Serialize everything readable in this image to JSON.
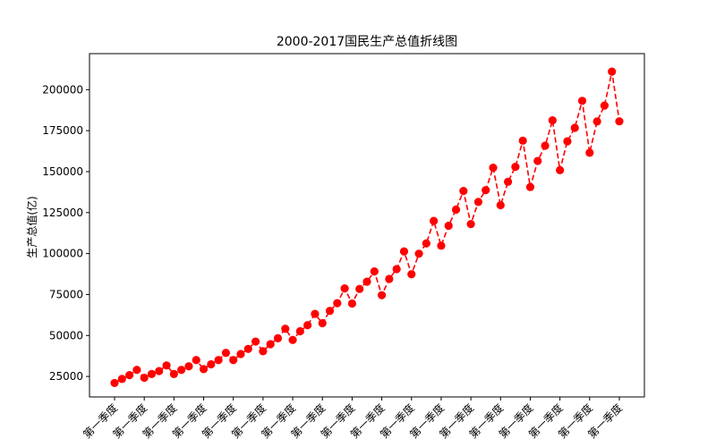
{
  "chart_data": {
    "type": "line",
    "title": "2000-2017国民生产总值折线图",
    "xlabel": "",
    "ylabel": "生产总值(亿)",
    "ylim": [
      12500,
      222000
    ],
    "yticks": [
      25000,
      50000,
      75000,
      100000,
      125000,
      150000,
      175000,
      200000
    ],
    "grid": false,
    "legend": "none",
    "line_color": "#ff0000",
    "marker_color": "#ff0000",
    "line_style": "dashed",
    "marker": "circle",
    "x_tick_labels": [
      "第一季度",
      "第一季度",
      "第一季度",
      "第一季度",
      "第一季度",
      "第一季度",
      "第一季度",
      "第一季度",
      "第一季度",
      "第一季度",
      "第一季度",
      "第一季度",
      "第一季度",
      "第一季度",
      "第一季度",
      "第一季度",
      "第一季度",
      "第一季度"
    ],
    "x_tick_every": 4,
    "values": [
      21000,
      23500,
      25800,
      29000,
      24200,
      26500,
      28300,
      31700,
      26500,
      29000,
      31200,
      35000,
      29500,
      32400,
      35000,
      39400,
      35000,
      38700,
      41800,
      46300,
      40400,
      44700,
      48300,
      54100,
      47300,
      52600,
      56300,
      63200,
      57500,
      65000,
      69700,
      78700,
      69500,
      78400,
      82800,
      89100,
      74600,
      84500,
      90500,
      101300,
      87400,
      99900,
      106200,
      119900,
      104800,
      117000,
      126800,
      138200,
      118000,
      131500,
      138700,
      152400,
      129500,
      143800,
      152900,
      168900,
      140600,
      156500,
      165800,
      181300,
      150900,
      168500,
      176700,
      193200,
      161500,
      180600,
      190300,
      211000,
      180700
    ]
  }
}
